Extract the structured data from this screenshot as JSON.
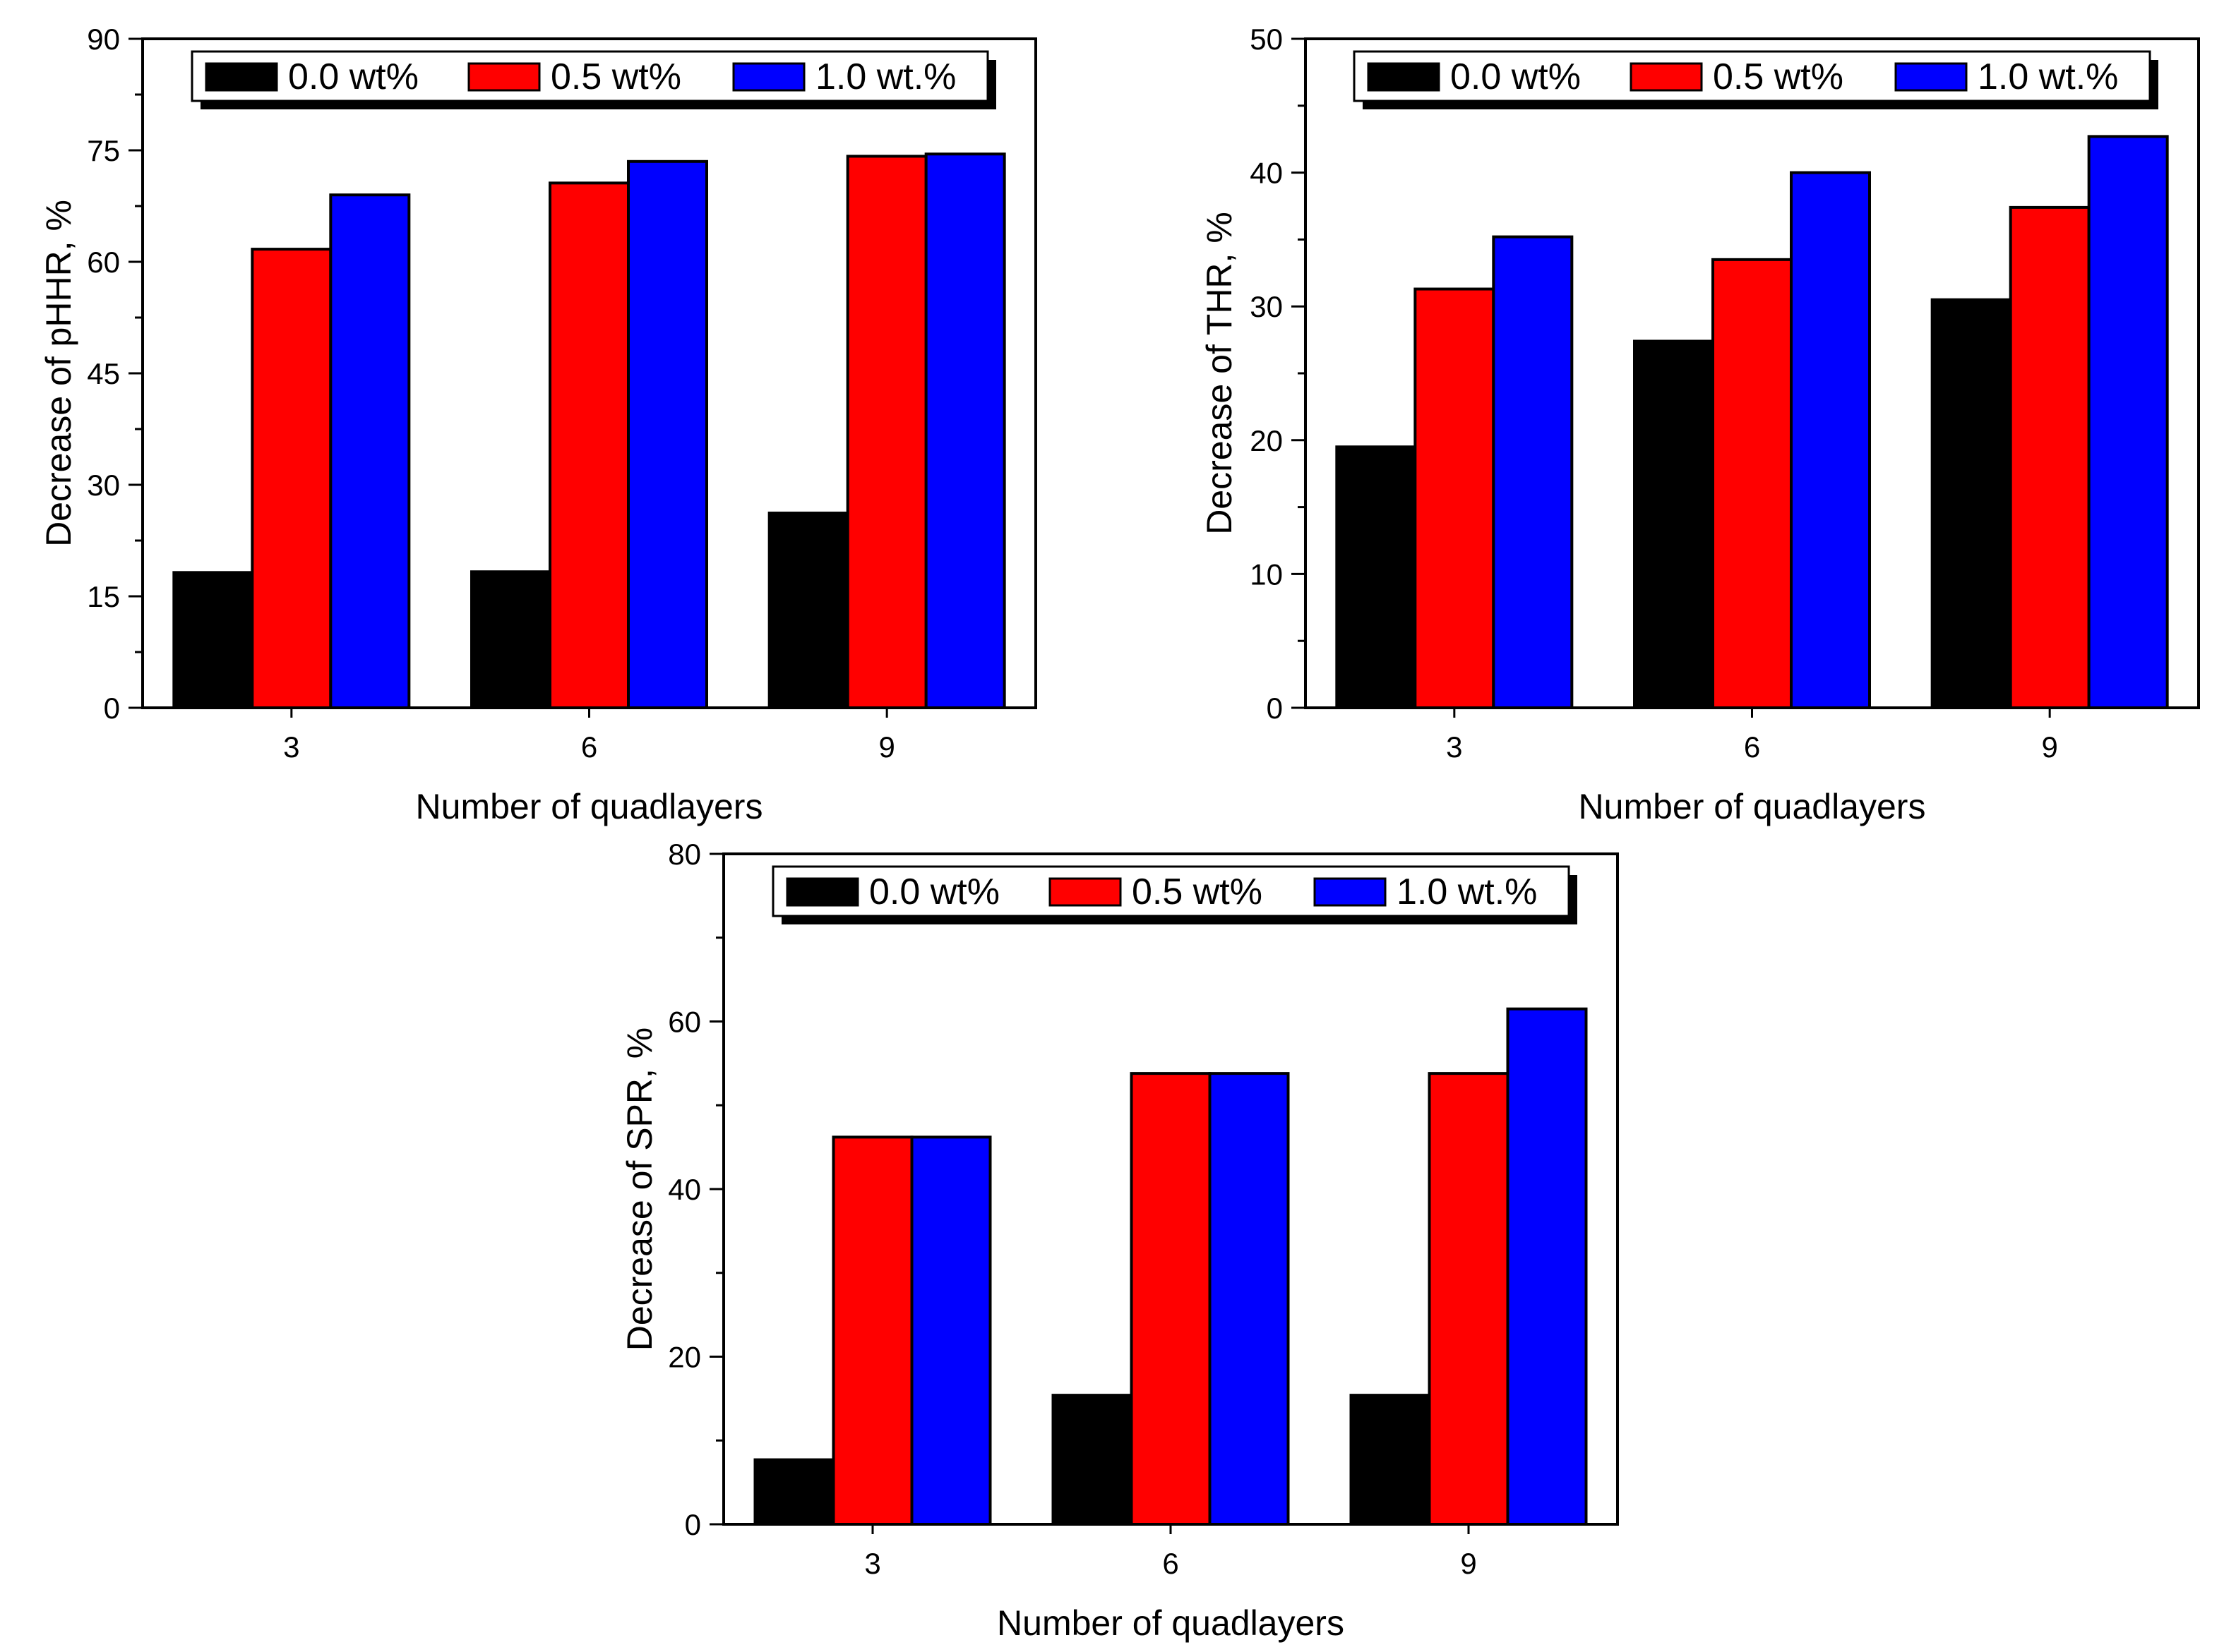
{
  "colors": {
    "0.0 wt%": "#000000",
    "0.5 wt%": "#ff0000",
    "1.0 wt.%": "#0000ff"
  },
  "chart_data": [
    {
      "id": "phhr",
      "type": "bar",
      "title": "",
      "xlabel": "Number of quadlayers",
      "ylabel": "Decrease of pHHR, %",
      "categories": [
        "3",
        "6",
        "9"
      ],
      "ylim": [
        0,
        90
      ],
      "yticks": [
        0,
        15,
        30,
        45,
        60,
        75,
        90
      ],
      "legend_position": "top",
      "grid": false,
      "series": [
        {
          "name": "0.0 wt%",
          "values": [
            18.2,
            18.3,
            26.2
          ]
        },
        {
          "name": "0.5 wt%",
          "values": [
            61.7,
            70.6,
            74.2
          ]
        },
        {
          "name": "1.0 wt.%",
          "values": [
            69.0,
            73.5,
            74.5
          ]
        }
      ]
    },
    {
      "id": "thr",
      "type": "bar",
      "title": "",
      "xlabel": "Number of quadlayers",
      "ylabel": "Decrease of THR, %",
      "categories": [
        "3",
        "6",
        "9"
      ],
      "ylim": [
        0,
        50
      ],
      "yticks": [
        0,
        10,
        20,
        30,
        40,
        50
      ],
      "legend_position": "top",
      "grid": false,
      "series": [
        {
          "name": "0.0 wt%",
          "values": [
            19.5,
            27.4,
            30.5
          ]
        },
        {
          "name": "0.5 wt%",
          "values": [
            31.3,
            33.5,
            37.4
          ]
        },
        {
          "name": "1.0 wt.%",
          "values": [
            35.2,
            40.0,
            42.7
          ]
        }
      ]
    },
    {
      "id": "spr",
      "type": "bar",
      "title": "",
      "xlabel": "Number of quadlayers",
      "ylabel": "Decrease of SPR, %",
      "categories": [
        "3",
        "6",
        "9"
      ],
      "ylim": [
        0,
        80
      ],
      "yticks": [
        0,
        20,
        40,
        60,
        80
      ],
      "legend_position": "top",
      "grid": false,
      "series": [
        {
          "name": "0.0 wt%",
          "values": [
            7.7,
            15.4,
            15.4
          ]
        },
        {
          "name": "0.5 wt%",
          "values": [
            46.2,
            53.8,
            53.8
          ]
        },
        {
          "name": "1.0 wt.%",
          "values": [
            46.2,
            53.8,
            61.5
          ]
        }
      ]
    }
  ]
}
